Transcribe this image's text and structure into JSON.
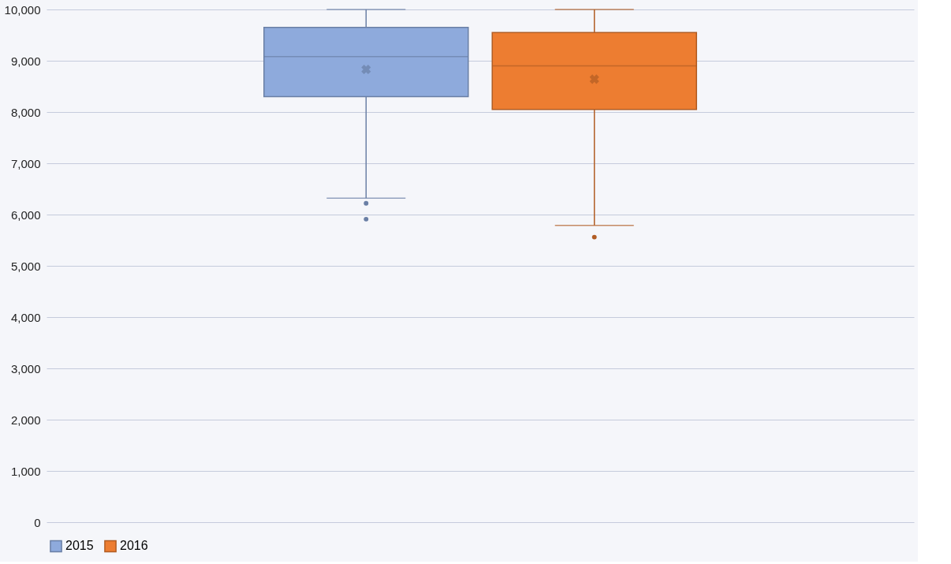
{
  "chart_data": {
    "type": "box",
    "categories": [
      null
    ],
    "series": [
      {
        "name": "2015",
        "color": "#8eaadc",
        "boxes": [
          {
            "low": 6320,
            "q1": 8300,
            "median": 9080,
            "q3": 9650,
            "high": 10000,
            "mean": 8830,
            "outliers": [
              6220,
              5910
            ]
          }
        ]
      },
      {
        "name": "2016",
        "color": "#ed7d31",
        "boxes": [
          {
            "low": 5790,
            "q1": 8050,
            "median": 8900,
            "q3": 9550,
            "high": 10000,
            "mean": 8640,
            "outliers": [
              5560
            ]
          }
        ]
      }
    ],
    "ylim": [
      0,
      10000
    ],
    "yticks": [
      0,
      {
        "value": 1000,
        "label": "1,000"
      },
      {
        "value": 2000,
        "label": "2,000"
      },
      {
        "value": 3000,
        "label": "3,000"
      },
      {
        "value": 4000,
        "label": "4,000"
      },
      {
        "value": 5000,
        "label": "5,000"
      },
      {
        "value": 6000,
        "label": "6,000"
      },
      {
        "value": 7000,
        "label": "7,000"
      },
      {
        "value": 8000,
        "label": "8,000"
      },
      {
        "value": 9000,
        "label": "9,000"
      },
      {
        "value": 10000,
        "label": "10,000"
      }
    ],
    "grid": "y",
    "legend": "bottom",
    "tick_labels": "y"
  }
}
